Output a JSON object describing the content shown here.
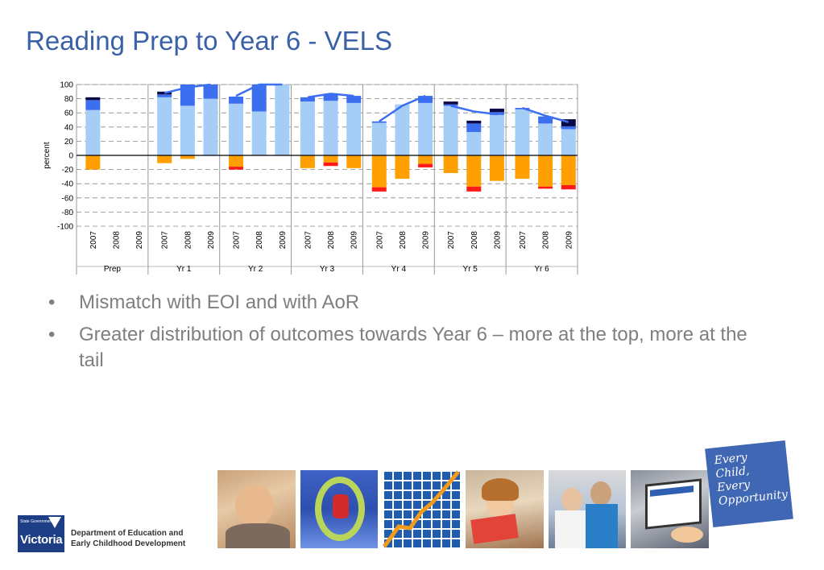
{
  "slide": {
    "title": "Reading Prep to Year 6 - VELS",
    "bullets": [
      "Mismatch with EOI and with AoR",
      "Greater distribution of outcomes towards Year 6 – more at the top, more at the tail"
    ]
  },
  "footer": {
    "vic_gov_label": "State Government",
    "vic_label": "Victoria",
    "dept_line1": "Department of Education and",
    "dept_line2": "Early Childhood Development",
    "card_lines": [
      "Every",
      "Child,",
      "Every",
      "Opportunity"
    ],
    "photos": [
      "baby-photo",
      "playground-photo",
      "growth-chart-photo",
      "reading-girl-photo",
      "science-lab-photo",
      "website-screen-photo"
    ]
  },
  "chart_data": {
    "type": "bar",
    "ylabel": "percent",
    "ylim": [
      -100,
      100
    ],
    "yticks": [
      100,
      80,
      60,
      40,
      20,
      0,
      -20,
      -40,
      -60,
      -80,
      -100
    ],
    "grid": true,
    "groups": [
      "Prep",
      "Yr 1",
      "Yr 2",
      "Yr 3",
      "Yr 4",
      "Yr 5",
      "Yr 6"
    ],
    "years": [
      "2007",
      "2008",
      "2009"
    ],
    "colors": {
      "light_blue": "#a5cdf5",
      "mid_blue": "#3c6ef0",
      "dark_navy": "#0a0a46",
      "orange": "#ffa000",
      "red": "#ff1a1a",
      "trend": "#3c6ef0"
    },
    "stack_order_note": "positive: light_blue, mid_blue, dark_navy; negative: orange, red",
    "bars": {
      "Prep": [
        {
          "pos": [
            64,
            14,
            4
          ],
          "neg": [
            -20,
            0
          ]
        },
        null,
        null
      ],
      "Yr 1": [
        {
          "pos": [
            82,
            4,
            4
          ],
          "neg": [
            -11,
            0
          ]
        },
        {
          "pos": [
            70,
            30,
            0
          ],
          "neg": [
            -5,
            0
          ]
        },
        {
          "pos": [
            80,
            20,
            0
          ],
          "neg": [
            0,
            0
          ]
        }
      ],
      "Yr 2": [
        {
          "pos": [
            73,
            10,
            0
          ],
          "neg": [
            -16,
            -4
          ]
        },
        {
          "pos": [
            62,
            38,
            0
          ],
          "neg": [
            0,
            0
          ]
        },
        {
          "pos": [
            100,
            0,
            0
          ],
          "neg": [
            0,
            0
          ]
        }
      ],
      "Yr 3": [
        {
          "pos": [
            76,
            6,
            0
          ],
          "neg": [
            -18,
            0
          ]
        },
        {
          "pos": [
            77,
            10,
            0
          ],
          "neg": [
            -10,
            -5
          ]
        },
        {
          "pos": [
            74,
            10,
            0
          ],
          "neg": [
            -18,
            0
          ]
        }
      ],
      "Yr 4": [
        {
          "pos": [
            46,
            2,
            0
          ],
          "neg": [
            -45,
            -6
          ]
        },
        {
          "pos": [
            72,
            0,
            0
          ],
          "neg": [
            -33,
            0
          ]
        },
        {
          "pos": [
            74,
            10,
            0
          ],
          "neg": [
            -12,
            -5
          ]
        }
      ],
      "Yr 5": [
        {
          "pos": [
            70,
            2,
            4
          ],
          "neg": [
            -25,
            0
          ]
        },
        {
          "pos": [
            33,
            12,
            4
          ],
          "neg": [
            -44,
            -7
          ]
        },
        {
          "pos": [
            57,
            4,
            5
          ],
          "neg": [
            -36,
            0
          ]
        }
      ],
      "Yr 6": [
        {
          "pos": [
            65,
            2,
            0
          ],
          "neg": [
            -33,
            0
          ]
        },
        {
          "pos": [
            45,
            10,
            0
          ],
          "neg": [
            -44,
            -3
          ]
        },
        {
          "pos": [
            37,
            4,
            10
          ],
          "neg": [
            -42,
            -6
          ]
        }
      ]
    },
    "trend_lines": {
      "Prep": [],
      "Yr 1": [
        88,
        96,
        100
      ],
      "Yr 2": [
        84,
        100,
        100
      ],
      "Yr 3": [
        82,
        87,
        84
      ],
      "Yr 4": [
        48,
        70,
        84
      ],
      "Yr 5": [
        70,
        62,
        58
      ],
      "Yr 6": [
        67,
        56,
        47
      ]
    }
  }
}
